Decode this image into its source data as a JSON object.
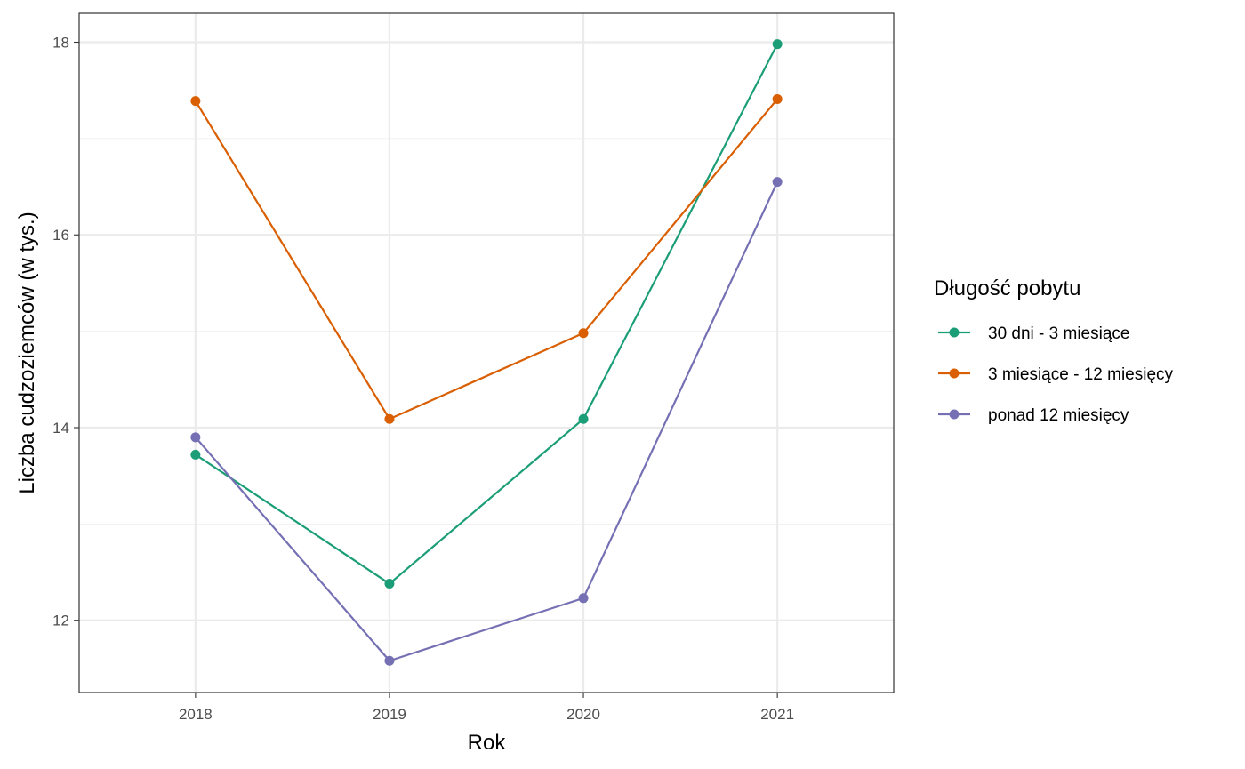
{
  "chart_data": {
    "type": "line",
    "title": "",
    "xlabel": "Rok",
    "ylabel": "Liczba cudzoziemców (w tys.)",
    "x": [
      "2018",
      "2019",
      "2020",
      "2021"
    ],
    "xlim": [
      2017.4,
      2021.6
    ],
    "ylim": [
      11.25,
      18.3
    ],
    "yticks": [
      12,
      14,
      16,
      18
    ],
    "grid": true,
    "legend_position": "right",
    "legend_title": "Długość pobytu",
    "series": [
      {
        "name": "30 dni - 3 miesiące",
        "color": "#1b9e77",
        "values": [
          13.72,
          12.38,
          14.09,
          17.98
        ]
      },
      {
        "name": "3 miesiące - 12 miesięcy",
        "color": "#d95f02",
        "values": [
          17.39,
          14.09,
          14.98,
          17.41
        ]
      },
      {
        "name": "ponad 12 miesięcy",
        "color": "#7570b3",
        "values": [
          13.9,
          11.58,
          12.23,
          16.55
        ]
      }
    ]
  }
}
